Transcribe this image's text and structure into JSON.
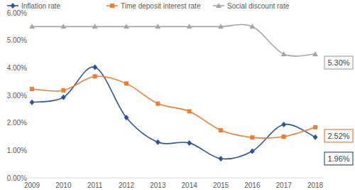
{
  "chart_data": {
    "type": "line",
    "categories": [
      "2009",
      "2010",
      "2011",
      "2012",
      "2013",
      "2014",
      "2015",
      "2016",
      "2017",
      "2018"
    ],
    "series": [
      {
        "name": "Inflation rate",
        "color": "#2f5597",
        "marker": "diamond",
        "line_style": "smooth",
        "values": [
          2.75,
          2.93,
          4.02,
          2.19,
          1.3,
          1.27,
          0.7,
          0.97,
          1.94,
          1.48
        ]
      },
      {
        "name": "Time deposit interest rate",
        "color": "#ed7d31",
        "marker": "square",
        "line_style": "smooth",
        "values": [
          3.23,
          3.18,
          3.69,
          3.43,
          2.7,
          2.42,
          1.73,
          1.47,
          1.5,
          1.84
        ]
      },
      {
        "name": "Social discount rate",
        "color": "#a5a5a5",
        "marker": "triangle",
        "line_style": "smooth",
        "values": [
          5.5,
          5.5,
          5.5,
          5.5,
          5.5,
          5.5,
          5.5,
          5.5,
          4.5,
          4.5
        ]
      }
    ],
    "ylim": [
      0,
      6
    ],
    "yticks": [
      {
        "value": 0,
        "label": "0.00%"
      },
      {
        "value": 1,
        "label": "1.00%"
      },
      {
        "value": 2,
        "label": "2.00%"
      },
      {
        "value": 3,
        "label": "3.00%"
      },
      {
        "value": 4,
        "label": "4.00%"
      },
      {
        "value": 5,
        "label": "5.00%"
      },
      {
        "value": 6,
        "label": "6.00%"
      }
    ],
    "grid": false,
    "legend": "top",
    "annotations": [
      {
        "text": "5.30%",
        "color": "#a5a5a5"
      },
      {
        "text": "2.52%",
        "color": "#ed7d31"
      },
      {
        "text": "1.96%",
        "color": "#2f5597"
      }
    ]
  }
}
